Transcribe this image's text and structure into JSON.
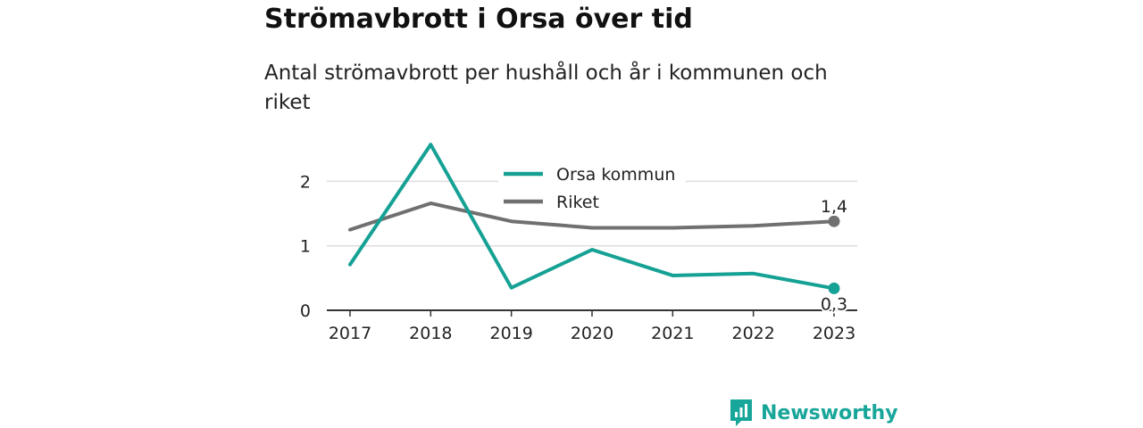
{
  "title": "Strömavbrott i Orsa över tid",
  "subtitle": "Antal strömavbrott per hushåll och år i kommunen och riket",
  "brand": {
    "name": "Newsworthy",
    "icon": "bar-chart-logo-icon"
  },
  "colors": {
    "orsa": "#16a195",
    "riket": "#707070",
    "grid": "#dddddd",
    "axis": "#333333"
  },
  "chart_data": {
    "type": "line",
    "x": [
      "2017",
      "2018",
      "2019",
      "2020",
      "2021",
      "2022",
      "2023"
    ],
    "ylim": [
      0,
      2.6
    ],
    "yticks": [
      "0",
      "1",
      "2"
    ],
    "grid": true,
    "legend": "top-center",
    "series": [
      {
        "name": "Orsa kommun",
        "values": [
          0.71,
          2.57,
          0.35,
          0.94,
          0.54,
          0.57,
          0.34
        ],
        "end_label": "0,3"
      },
      {
        "name": "Riket",
        "values": [
          1.25,
          1.66,
          1.38,
          1.28,
          1.28,
          1.31,
          1.38
        ],
        "end_label": "1,4"
      }
    ]
  }
}
